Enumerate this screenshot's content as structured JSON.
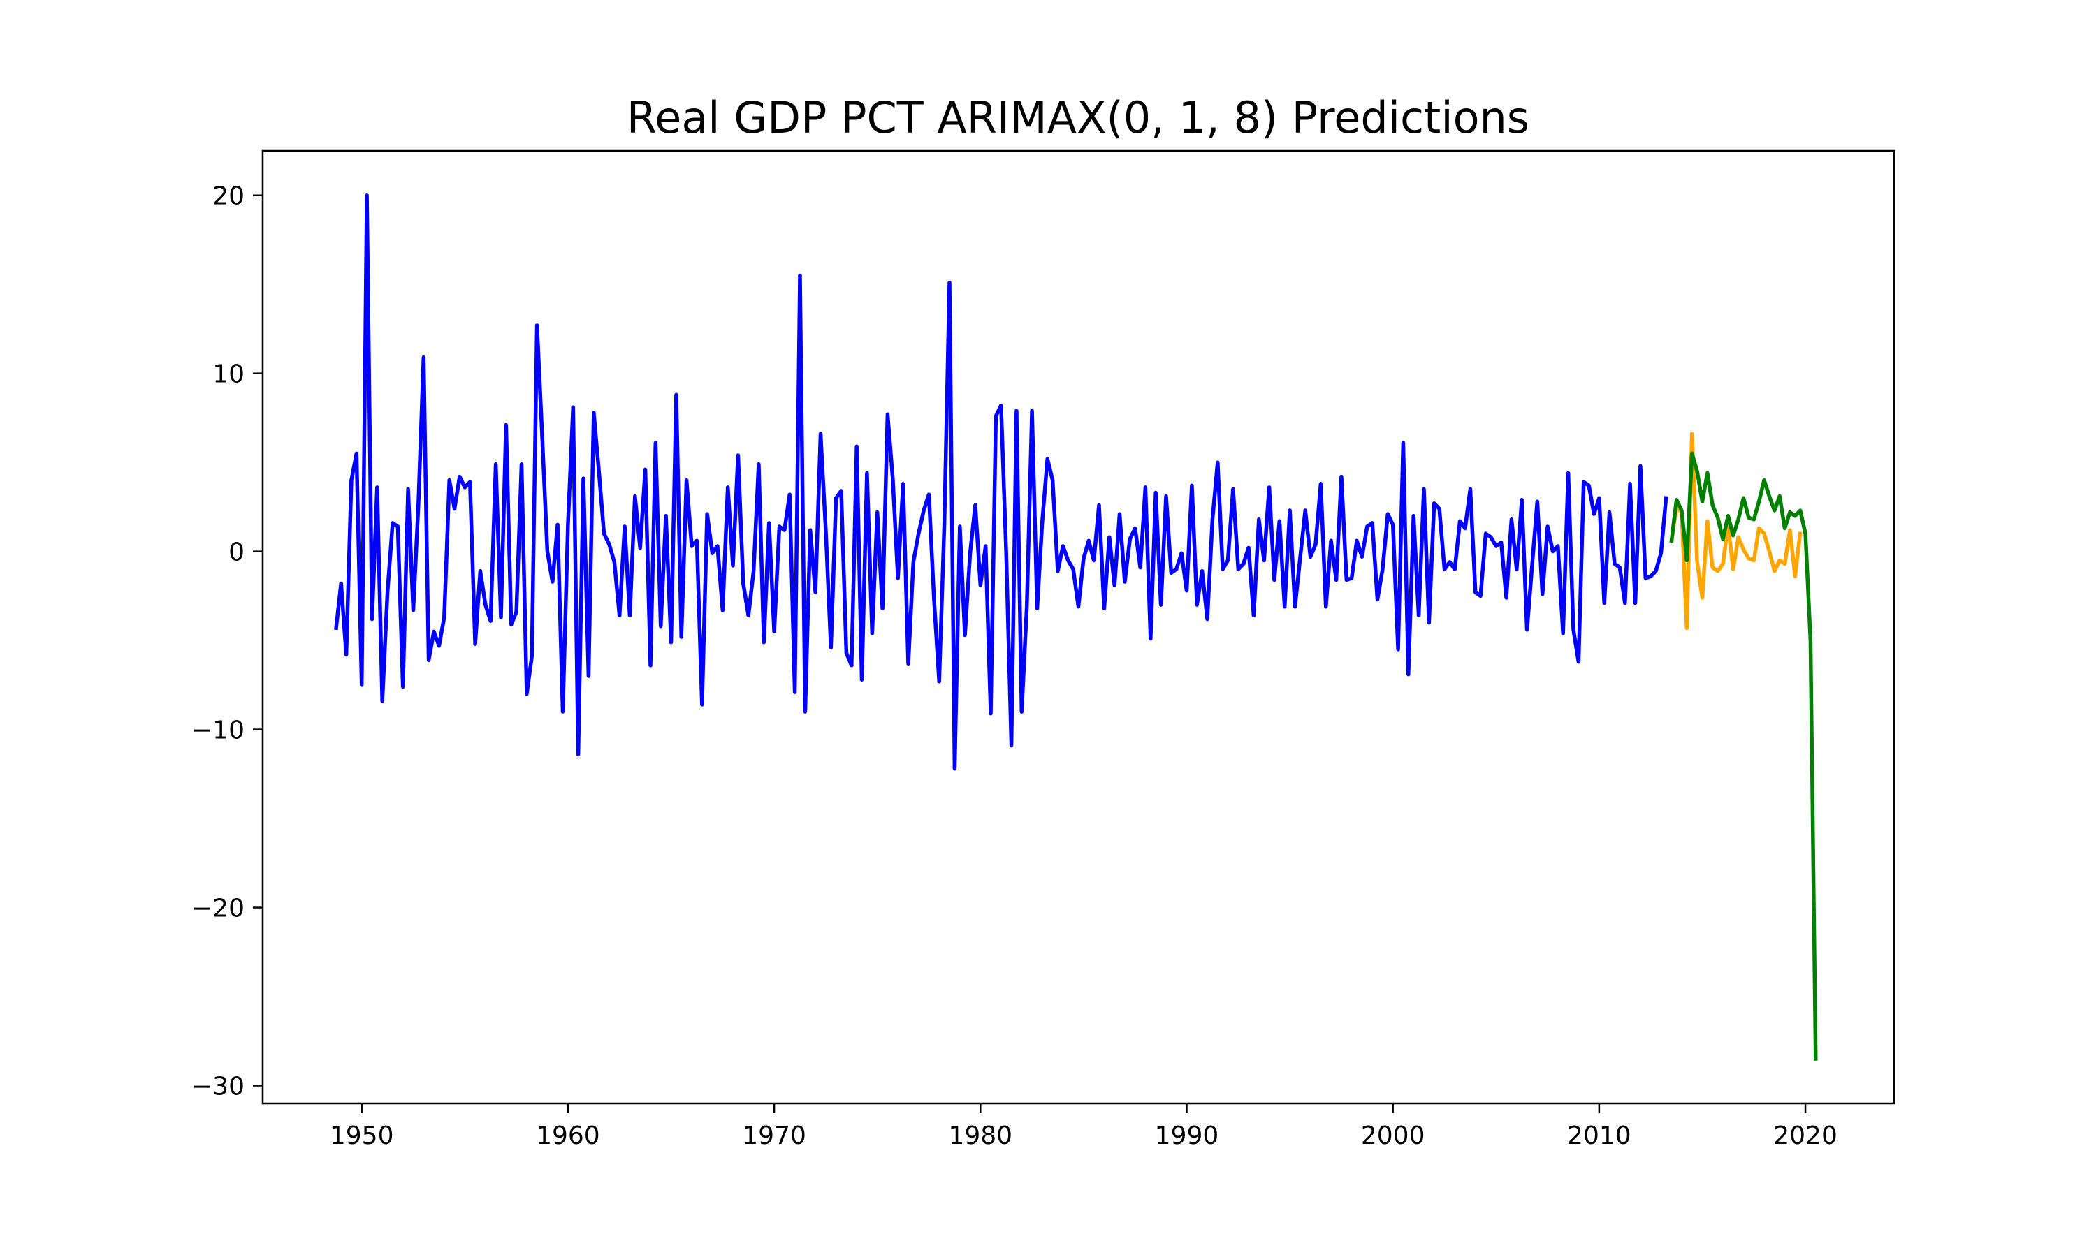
{
  "chart_data": {
    "type": "line",
    "title": "Real GDP PCT ARIMAX(0, 1, 8) Predictions",
    "xlabel": "",
    "ylabel": "",
    "xlim": [
      1945.2,
      2024.3
    ],
    "ylim": [
      -31.0,
      22.5
    ],
    "xticks": [
      1950,
      1960,
      1970,
      1980,
      1990,
      2000,
      2010,
      2020
    ],
    "yticks": [
      20,
      10,
      0,
      -10,
      -20,
      -30
    ],
    "ytick_labels": [
      "20",
      "10",
      "0",
      "−10",
      "−20",
      "−30"
    ],
    "grid": false,
    "legend": "none",
    "series": [
      {
        "color": "#0000ff",
        "x": [
          1948.75,
          1949.0,
          1949.25,
          1949.5,
          1949.75,
          1950.0,
          1950.25,
          1950.5,
          1950.75,
          1951.0,
          1951.25,
          1951.5,
          1951.75,
          1952.0,
          1952.25,
          1952.5,
          1952.75,
          1953.0,
          1953.25,
          1953.5,
          1953.75,
          1954.0,
          1954.25,
          1954.5,
          1954.75,
          1955.0,
          1955.25,
          1955.5,
          1955.75,
          1956.0,
          1956.25,
          1956.5,
          1956.75,
          1957.0,
          1957.25,
          1957.5,
          1957.75,
          1958.0,
          1958.25,
          1958.5,
          1958.75,
          1959.0,
          1959.25,
          1959.5,
          1959.75,
          1960.0,
          1960.25,
          1960.5,
          1960.75,
          1961.0,
          1961.25,
          1961.5,
          1961.75,
          1962.0,
          1962.25,
          1962.5,
          1962.75,
          1963.0,
          1963.25,
          1963.5,
          1963.75,
          1964.0,
          1964.25,
          1964.5,
          1964.75,
          1965.0,
          1965.25,
          1965.5,
          1965.75,
          1966.0,
          1966.25,
          1966.5,
          1966.75,
          1967.0,
          1967.25,
          1967.5,
          1967.75,
          1968.0,
          1968.25,
          1968.5,
          1968.75,
          1969.0,
          1969.25,
          1969.5,
          1969.75,
          1970.0,
          1970.25,
          1970.5,
          1970.75,
          1971.0,
          1971.25,
          1971.5,
          1971.75,
          1972.0,
          1972.25,
          1972.5,
          1972.75,
          1973.0,
          1973.25,
          1973.5,
          1973.75,
          1974.0,
          1974.25,
          1974.5,
          1974.75,
          1975.0,
          1975.25,
          1975.5,
          1975.75,
          1976.0,
          1976.25,
          1976.5,
          1976.75,
          1977.0,
          1977.25,
          1977.5,
          1977.75,
          1978.0,
          1978.25,
          1978.5,
          1978.75,
          1979.0,
          1979.25,
          1979.5,
          1979.75,
          1980.0,
          1980.25,
          1980.5,
          1980.75,
          1981.0,
          1981.25,
          1981.5,
          1981.75,
          1982.0,
          1982.25,
          1982.5,
          1982.75,
          1983.0,
          1983.25,
          1983.5,
          1983.75,
          1984.0,
          1984.25,
          1984.5,
          1984.75,
          1985.0,
          1985.25,
          1985.5,
          1985.75,
          1986.0,
          1986.25,
          1986.5,
          1986.75,
          1987.0,
          1987.25,
          1987.5,
          1987.75,
          1988.0,
          1988.25,
          1988.5,
          1988.75,
          1989.0,
          1989.25,
          1989.5,
          1989.75,
          1990.0,
          1990.25,
          1990.5,
          1990.75,
          1991.0,
          1991.25,
          1991.5,
          1991.75,
          1992.0,
          1992.25,
          1992.5,
          1992.75,
          1993.0,
          1993.25,
          1993.5,
          1993.75,
          1994.0,
          1994.25,
          1994.5,
          1994.75,
          1995.0,
          1995.25,
          1995.5,
          1995.75,
          1996.0,
          1996.25,
          1996.5,
          1996.75,
          1997.0,
          1997.25,
          1997.5,
          1997.75,
          1998.0,
          1998.25,
          1998.5,
          1998.75,
          1999.0,
          1999.25,
          1999.5,
          1999.75,
          2000.0,
          2000.25,
          2000.5,
          2000.75,
          2001.0,
          2001.25,
          2001.5,
          2001.75,
          2002.0,
          2002.25,
          2002.5,
          2002.75,
          2003.0,
          2003.25,
          2003.5,
          2003.75,
          2004.0,
          2004.25,
          2004.5,
          2004.75,
          2005.0,
          2005.25,
          2005.5,
          2005.75,
          2006.0,
          2006.25,
          2006.5,
          2006.75,
          2007.0,
          2007.25,
          2007.5,
          2007.75,
          2008.0,
          2008.25,
          2008.5,
          2008.75,
          2009.0,
          2009.25,
          2009.5,
          2009.75,
          2010.0,
          2010.25,
          2010.5,
          2010.75,
          2011.0,
          2011.25,
          2011.5,
          2011.75,
          2012.0,
          2012.25,
          2012.5,
          2012.75,
          2013.0,
          2013.25
        ],
        "y": [
          -4.4,
          -1.8,
          -5.8,
          4.0,
          5.5,
          -7.5,
          20.0,
          -3.8,
          3.6,
          -8.4,
          -2.3,
          1.6,
          1.4,
          -7.6,
          3.5,
          -3.3,
          2.7,
          10.9,
          -6.1,
          -4.5,
          -5.3,
          -3.7,
          4.0,
          2.4,
          4.2,
          3.6,
          3.9,
          -5.2,
          -1.1,
          -3.0,
          -3.9,
          4.9,
          -3.7,
          7.1,
          -4.1,
          -3.4,
          4.9,
          -8.0,
          -5.9,
          12.7,
          6.5,
          0.0,
          -1.7,
          1.5,
          -9.0,
          1.5,
          8.1,
          -11.4,
          4.1,
          -7.0,
          7.8,
          4.5,
          1.0,
          0.4,
          -0.6,
          -3.6,
          1.4,
          -3.6,
          3.1,
          0.2,
          4.6,
          -6.4,
          6.1,
          -4.2,
          2.0,
          -5.1,
          8.8,
          -4.8,
          4.0,
          0.3,
          0.6,
          -8.6,
          2.1,
          -0.1,
          0.3,
          -3.3,
          3.6,
          -0.8,
          5.4,
          -1.8,
          -3.6,
          -1.1,
          4.9,
          -5.1,
          1.6,
          -4.5,
          1.4,
          1.2,
          3.2,
          -7.9,
          15.5,
          -9.0,
          1.2,
          -2.3,
          6.6,
          1.2,
          -5.4,
          3.0,
          3.4,
          -5.7,
          -6.4,
          5.9,
          -7.2,
          4.4,
          -4.6,
          2.2,
          -3.2,
          7.7,
          4.1,
          -1.5,
          3.8,
          -6.3,
          -0.6,
          1.0,
          2.3,
          3.2,
          -2.7,
          -7.3,
          1.5,
          15.1,
          -12.2,
          1.4,
          -4.7,
          -0.1,
          2.6,
          -1.9,
          0.3,
          -9.1,
          7.6,
          8.2,
          -0.1,
          -10.9,
          7.9,
          -9.0,
          -3.1,
          7.9,
          -3.2,
          1.7,
          5.2,
          4.0,
          -1.1,
          0.3,
          -0.5,
          -1.0,
          -3.1,
          -0.4,
          0.6,
          -0.5,
          2.6,
          -3.2,
          0.8,
          -1.9,
          2.1,
          -1.7,
          0.7,
          1.3,
          -0.9,
          3.6,
          -4.9,
          3.3,
          -3.0,
          3.1,
          -1.2,
          -1.0,
          -0.1,
          -2.2,
          3.7,
          -3.0,
          -1.1,
          -3.8,
          1.8,
          5.0,
          -1.0,
          -0.5,
          3.5,
          -1.0,
          -0.7,
          0.2,
          -3.6,
          1.8,
          -0.5,
          3.6,
          -1.6,
          1.7,
          -3.1,
          2.3,
          -3.1,
          -0.4,
          2.3,
          -0.3,
          0.4,
          3.8,
          -3.1,
          0.6,
          -1.6,
          4.2,
          -1.6,
          -1.5,
          0.6,
          -0.3,
          1.4,
          1.6,
          -2.7,
          -1.0,
          2.1,
          1.5,
          -5.5,
          6.1,
          -6.9,
          2.0,
          -3.6,
          3.5,
          -4.0,
          2.7,
          2.4,
          -1.0,
          -0.6,
          -1.0,
          1.7,
          1.3,
          3.5,
          -2.3,
          -2.5,
          1.0,
          0.8,
          0.3,
          0.5,
          -2.6,
          1.8,
          -1.0,
          2.9,
          -4.4,
          -0.8,
          2.8,
          -2.4,
          1.4,
          0.0,
          0.3,
          -4.6,
          4.4,
          -4.4,
          -6.2,
          3.9,
          3.7,
          2.1,
          3.0,
          -2.9,
          2.2,
          -0.7,
          -0.9,
          -2.9,
          3.8,
          -2.9,
          4.8,
          -1.5,
          -1.4,
          -1.1,
          -0.1,
          3.1
        ]
      },
      {
        "color": "#ffa500",
        "x": [
          2013.5,
          2013.75,
          2014.0,
          2014.25,
          2014.5,
          2014.75,
          2015.0,
          2015.25,
          2015.5,
          2015.75,
          2016.0,
          2016.25,
          2016.5,
          2016.75,
          2017.0,
          2017.25,
          2017.5,
          2017.75,
          2018.0,
          2018.25,
          2018.5,
          2018.75,
          2019.0,
          2019.25,
          2019.5,
          2019.75
        ],
        "y": [
          0.5,
          2.5,
          2.2,
          -4.3,
          6.6,
          -0.6,
          -2.6,
          1.7,
          -0.9,
          -1.1,
          -0.7,
          1.5,
          -1.0,
          0.8,
          0.1,
          -0.4,
          -0.5,
          1.3,
          1.0,
          0.0,
          -1.1,
          -0.5,
          -0.7,
          1.2,
          -1.4,
          1.1
        ]
      },
      {
        "color": "#008000",
        "x": [
          2013.5,
          2013.75,
          2014.0,
          2014.25,
          2014.5,
          2014.75,
          2015.0,
          2015.25,
          2015.5,
          2015.75,
          2016.0,
          2016.25,
          2016.5,
          2016.75,
          2017.0,
          2017.25,
          2017.5,
          2017.75,
          2018.0,
          2018.25,
          2018.5,
          2018.75,
          2019.0,
          2019.25,
          2019.5,
          2019.75,
          2020.0,
          2020.25,
          2020.5
        ],
        "y": [
          0.5,
          2.9,
          2.3,
          -0.5,
          5.5,
          4.5,
          2.8,
          4.4,
          2.6,
          1.9,
          0.7,
          2.0,
          0.9,
          1.8,
          3.0,
          1.9,
          1.8,
          2.8,
          4.0,
          3.1,
          2.3,
          3.1,
          1.3,
          2.2,
          2.0,
          2.3,
          1.0,
          -5.0,
          -28.6
        ]
      }
    ]
  }
}
